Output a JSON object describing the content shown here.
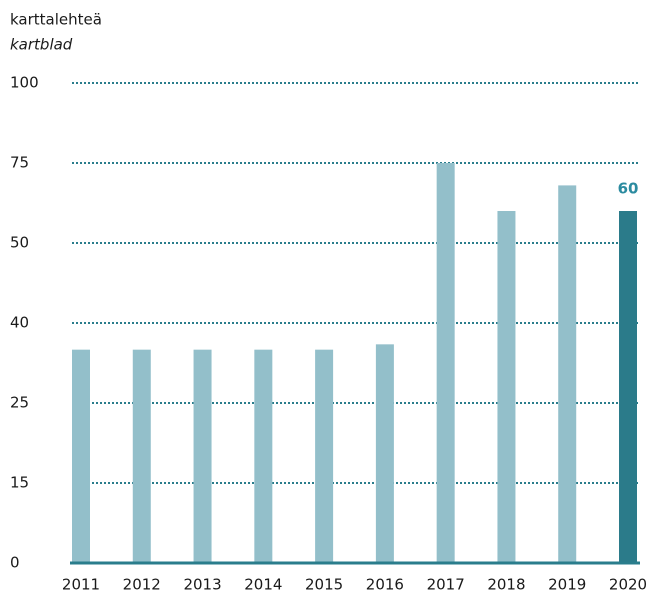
{
  "chart_data": {
    "type": "bar",
    "y_label": "karttalehteä",
    "y_label_sv": "kartblad",
    "categories": [
      "2011",
      "2012",
      "2013",
      "2014",
      "2015",
      "2016",
      "2017",
      "2018",
      "2019",
      "2020"
    ],
    "values": [
      35,
      35,
      35,
      35,
      35,
      36,
      75,
      60,
      68,
      60
    ],
    "colors": [
      "#93bfca",
      "#93bfca",
      "#93bfca",
      "#93bfca",
      "#93bfca",
      "#93bfca",
      "#93bfca",
      "#93bfca",
      "#93bfca",
      "#2b7b8a"
    ],
    "labeled_categories": [
      "2020"
    ],
    "label_color": "#2b8ba0",
    "ylim": [
      0,
      100
    ],
    "yticks": [
      0,
      15,
      25,
      40,
      50,
      75,
      100
    ],
    "grid": true,
    "grid_color": "#2a7d8c"
  }
}
